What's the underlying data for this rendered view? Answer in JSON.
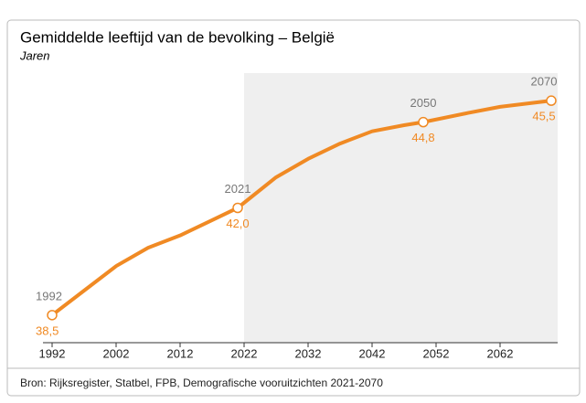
{
  "chart_data": {
    "type": "line",
    "title": "Gemiddelde leeftijd van de bevolking – België",
    "subtitle": "Jaren",
    "source": "Bron: Rijksregister, Statbel, FPB, Demografische vooruitzichten 2021-2070",
    "x": [
      1992,
      1997,
      2002,
      2007,
      2012,
      2017,
      2021,
      2027,
      2032,
      2037,
      2042,
      2047,
      2050,
      2057,
      2062,
      2070
    ],
    "series": [
      {
        "name": "Gemiddelde leeftijd",
        "color": "#f08a24",
        "values": [
          38.5,
          39.3,
          40.1,
          40.7,
          41.1,
          41.6,
          42.0,
          43.0,
          43.6,
          44.1,
          44.5,
          44.7,
          44.8,
          45.1,
          45.3,
          45.5
        ],
        "value_labels": [
          "38,5",
          null,
          null,
          null,
          null,
          null,
          "42,0",
          null,
          null,
          null,
          null,
          null,
          "44,8",
          null,
          null,
          "45,5"
        ]
      }
    ],
    "xlim": [
      1992,
      2071
    ],
    "xticks": [
      1992,
      2002,
      2012,
      2022,
      2032,
      2042,
      2052,
      2062
    ],
    "ylim": [
      37.6,
      46.4
    ],
    "shade_from": 2022,
    "shade_color": "#efefef"
  }
}
